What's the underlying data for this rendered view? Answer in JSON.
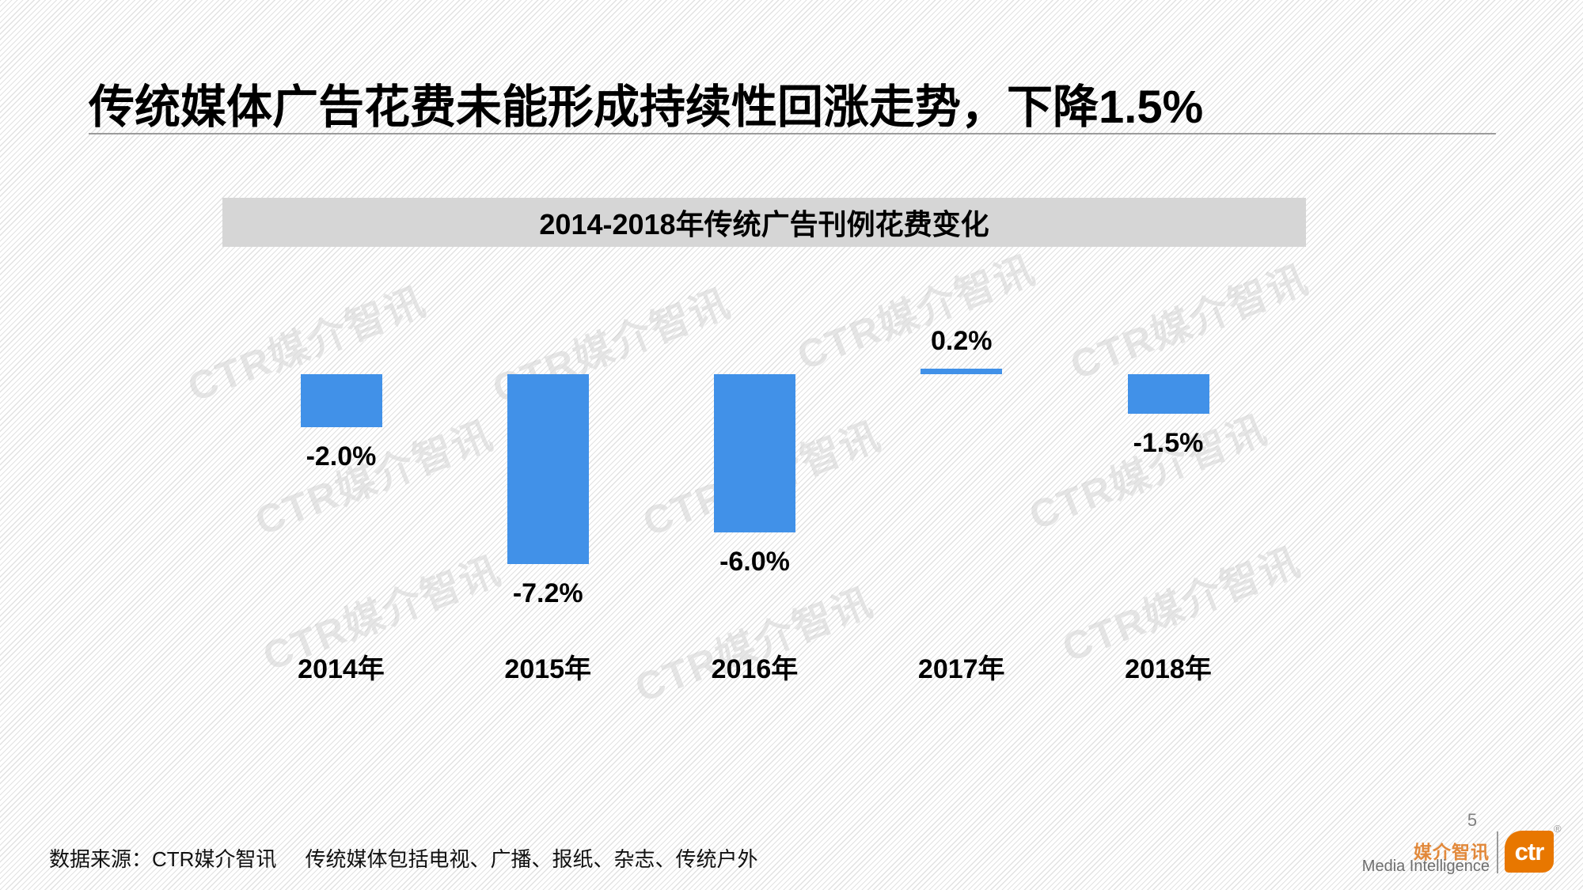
{
  "slide": {
    "title": "传统媒体广告花费未能形成持续性回涨走势，下降1.5%",
    "page_number": "5",
    "source_note": "数据来源：CTR媒介智讯",
    "scope_note": "传统媒体包括电视、广播、报纸、杂志、传统户外",
    "watermark_text": "CTR媒介智讯"
  },
  "chart_data": {
    "type": "bar",
    "title": "2014-2018年传统广告刊例花费变化",
    "categories": [
      "2014年",
      "2015年",
      "2016年",
      "2017年",
      "2018年"
    ],
    "values": [
      -2.0,
      -7.2,
      -6.0,
      0.2,
      -1.5
    ],
    "labels": [
      "-2.0%",
      "-7.2%",
      "-6.0%",
      "0.2%",
      "-1.5%"
    ],
    "unit": "%",
    "ylim": [
      -8,
      1
    ],
    "grid": false,
    "legend": false,
    "bar_color": "#4191E8"
  },
  "footer_logo": {
    "brand_cn": "媒介智讯",
    "brand_en": "Media Intelligence",
    "logo_text": "ctr",
    "registered_mark": "®",
    "logo_color": "#E87700"
  }
}
